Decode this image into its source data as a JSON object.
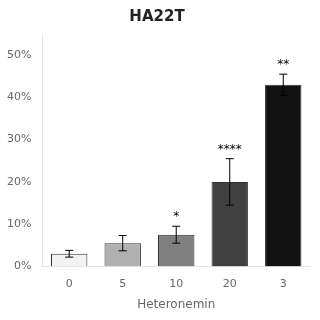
{
  "chart_data": {
    "type": "bar",
    "title": "HA22T",
    "categories": [
      "0",
      "5",
      "10",
      "20",
      "3"
    ],
    "values": [
      3.0,
      5.5,
      7.5,
      20.0,
      43.0
    ],
    "errors": [
      0.8,
      1.8,
      2.0,
      5.5,
      2.5
    ],
    "colors": [
      "#f2f2f2",
      "#b0b0b0",
      "#808080",
      "#404040",
      "#111111"
    ],
    "annotations": [
      {
        "x": "10",
        "text": "*"
      },
      {
        "x": "20",
        "text": "****"
      },
      {
        "x": "3",
        "text": "**"
      }
    ],
    "xlabel": "Heteronemin",
    "ylim": [
      0,
      55
    ],
    "yticks": [
      {
        "value": 0,
        "label": "0%"
      },
      {
        "value": 10,
        "label": "10%"
      },
      {
        "value": 20,
        "label": "20%"
      },
      {
        "value": 30,
        "label": "30%"
      },
      {
        "value": 40,
        "label": "40%"
      },
      {
        "value": 50,
        "label": "50%"
      }
    ],
    "grid": false
  }
}
